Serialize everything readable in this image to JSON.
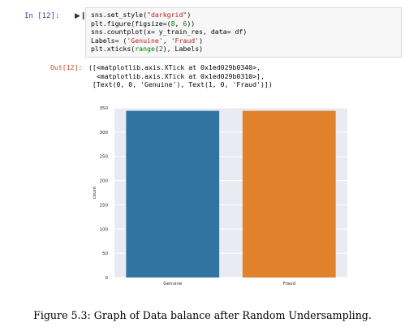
{
  "input_prompt": "In [12]:",
  "output_prompt": "Out[12]:",
  "run_icon": "run-cell-icon",
  "code_lines": [
    [
      {
        "t": "sns.set_style("
      },
      {
        "t": "\"darkgrid\"",
        "c": "str"
      },
      {
        "t": ")"
      }
    ],
    [
      {
        "t": "plt.figure(figsize=("
      },
      {
        "t": "8",
        "c": "num"
      },
      {
        "t": ", "
      },
      {
        "t": "6",
        "c": "num"
      },
      {
        "t": "))"
      }
    ],
    [
      {
        "t": "sns.countplot(x= y_train_res, data= df)"
      }
    ],
    [
      {
        "t": "Labels= ("
      },
      {
        "t": "'Genuine'",
        "c": "str"
      },
      {
        "t": ", "
      },
      {
        "t": "'Fraud'",
        "c": "str"
      },
      {
        "t": ")"
      }
    ],
    [
      {
        "t": "plt.xticks("
      },
      {
        "t": "range",
        "c": "builtin"
      },
      {
        "t": "("
      },
      {
        "t": "2",
        "c": "num"
      },
      {
        "t": "), Labels)"
      }
    ]
  ],
  "output_lines": [
    "([<matplotlib.axis.XTick at 0x1ed029b0340>,",
    "  <matplotlib.axis.XTick at 0x1ed029b0310>],",
    " [Text(0, 0, 'Genuine'), Text(1, 0, 'Fraud')])"
  ],
  "chart_data": {
    "type": "bar",
    "categories": [
      "Genuine",
      "Fraud"
    ],
    "values": [
      344,
      344
    ],
    "colors": [
      "#3274a1",
      "#e1812c"
    ],
    "ylabel": "count",
    "xlabel": "",
    "ylim": [
      0,
      350
    ],
    "yticks": [
      0,
      50,
      100,
      150,
      200,
      250,
      300,
      350
    ],
    "grid": true,
    "background": "#eaeaf2"
  },
  "caption": "Figure 5.3: Graph of Data balance after Random Undersampling."
}
